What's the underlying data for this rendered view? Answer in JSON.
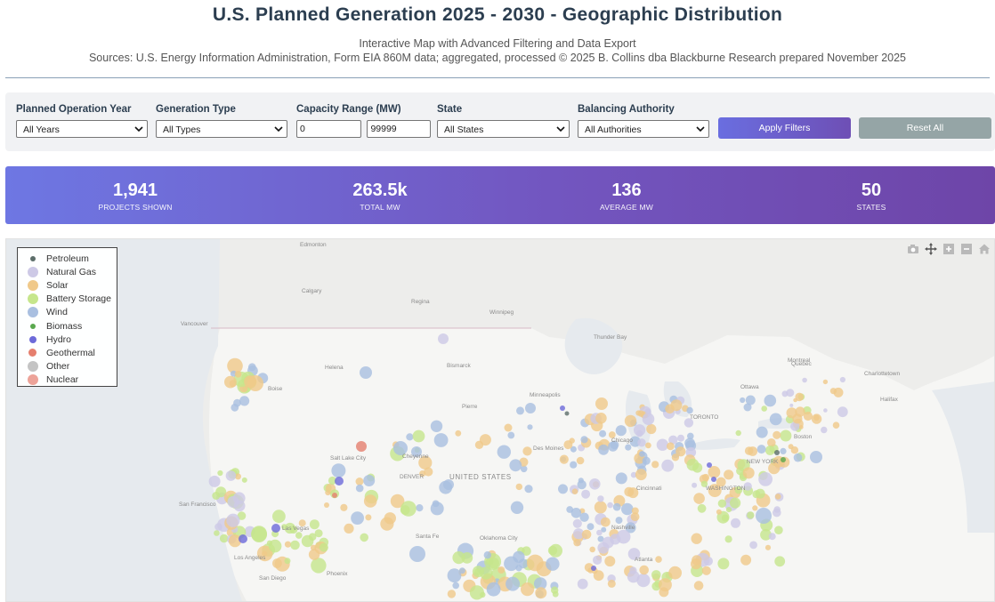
{
  "header": {
    "title": "U.S. Planned Generation 2025 - 2030 - Geographic Distribution",
    "subtitle": "Interactive Map with Advanced Filtering and Data Export",
    "sources": "Sources: U.S. Energy Information Administration, Form EIA 860M data; aggregated, processed © 2025 B. Collins dba Blackburne Research prepared November 2025"
  },
  "filters": {
    "year": {
      "label": "Planned Operation Year",
      "value": "All Years"
    },
    "type": {
      "label": "Generation Type",
      "value": "All Types"
    },
    "capacity": {
      "label": "Capacity Range (MW)",
      "min": "0",
      "max": "99999"
    },
    "state": {
      "label": "State",
      "value": "All States"
    },
    "ba": {
      "label": "Balancing Authority",
      "value": "All Authorities"
    },
    "apply_label": "Apply Filters",
    "reset_label": "Reset All"
  },
  "stats": [
    {
      "value": "1,941",
      "label": "PROJECTS SHOWN"
    },
    {
      "value": "263.5k",
      "label": "TOTAL MW"
    },
    {
      "value": "136",
      "label": "AVERAGE MW"
    },
    {
      "value": "50",
      "label": "STATES"
    }
  ],
  "legend": [
    {
      "name": "Petroleum",
      "color": "#5c6e6a",
      "size": 6
    },
    {
      "name": "Natural Gas",
      "color": "#cdc9e6",
      "size": 12
    },
    {
      "name": "Solar",
      "color": "#f0c98a",
      "size": 12
    },
    {
      "name": "Battery Storage",
      "color": "#c6e68c",
      "size": 12
    },
    {
      "name": "Wind",
      "color": "#a9bfe0",
      "size": 12
    },
    {
      "name": "Biomass",
      "color": "#5aa84e",
      "size": 6
    },
    {
      "name": "Hydro",
      "color": "#6d6ad9",
      "size": 8
    },
    {
      "name": "Geothermal",
      "color": "#e57f6e",
      "size": 9
    },
    {
      "name": "Other",
      "color": "#c4c4c4",
      "size": 12
    },
    {
      "name": "Nuclear",
      "color": "#eda399",
      "size": 12
    }
  ],
  "map": {
    "country_labels": [
      "UNITED STATES"
    ],
    "city_labels": [
      "Edmonton",
      "Calgary",
      "Regina",
      "Winnipeg",
      "Vancouver",
      "Helena",
      "Bismarck",
      "Pierre",
      "Boise",
      "Cheyenne",
      "Salt Lake City",
      "DENVER",
      "San Francisco",
      "Las Vegas",
      "Los Angeles",
      "San Diego",
      "Santa Fe",
      "Oklahoma City",
      "Des Moines",
      "Minneapolis",
      "Chicago",
      "Cincinnati",
      "Nashville",
      "Atlanta",
      "TORONTO",
      "Ottawa",
      "Montreal",
      "Quebec",
      "Boston",
      "NEW YORK",
      "WASHINGTON",
      "Thunder Bay",
      "Charlottetown",
      "Halifax",
      "Phoenix"
    ],
    "mode_icons": [
      "camera-icon",
      "pan-icon",
      "zoom-in-icon",
      "zoom-out-icon",
      "home-icon"
    ]
  }
}
